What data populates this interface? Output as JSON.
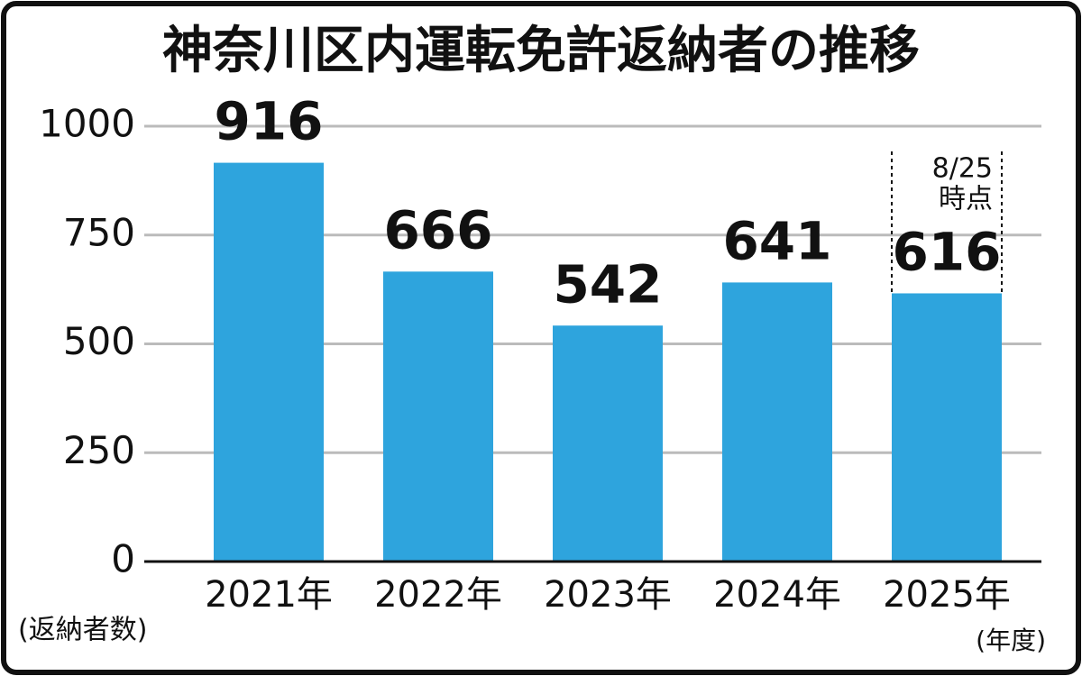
{
  "chart_data": {
    "type": "bar",
    "title": "神奈川区内運転免許返納者の推移",
    "categories": [
      "2021年",
      "2022年",
      "2023年",
      "2024年",
      "2025年"
    ],
    "values": [
      916,
      666,
      542,
      641,
      616
    ],
    "color": "#2ea4dd",
    "ylim": [
      0,
      1000
    ],
    "yticks": [
      0,
      250,
      500,
      750,
      1000
    ],
    "grid": true,
    "y_label": "(返納者数)",
    "x_label": "(年度)",
    "annotation": [
      "8/25",
      "時点"
    ]
  }
}
